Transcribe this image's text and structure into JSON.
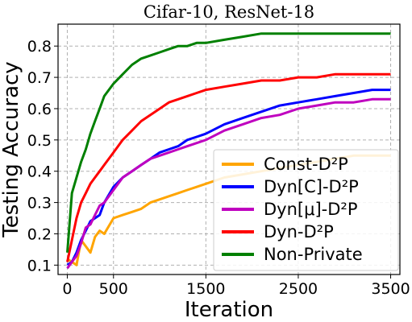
{
  "chart_data": {
    "type": "line",
    "title": "Cifar-10, ResNet-18",
    "xlabel": "Iteration",
    "ylabel": "Testing Accuracy",
    "xlim": [
      -100,
      3600
    ],
    "ylim": [
      0.07,
      0.87
    ],
    "xticks": [
      0,
      500,
      1500,
      2500,
      3500
    ],
    "yticks": [
      0.1,
      0.2,
      0.3,
      0.4,
      0.5,
      0.6,
      0.7,
      0.8
    ],
    "grid": true,
    "legend_position": "lower-right",
    "series": [
      {
        "name": "Const-D²P",
        "color": "#ffa500",
        "x": [
          0,
          50,
          100,
          150,
          200,
          250,
          300,
          350,
          400,
          500,
          600,
          700,
          800,
          900,
          1000,
          1100,
          1200,
          1300,
          1400,
          1500,
          1700,
          1900,
          2100,
          2300,
          2500,
          2700,
          2900,
          3100,
          3300,
          3500
        ],
        "y": [
          0.12,
          0.11,
          0.1,
          0.18,
          0.16,
          0.14,
          0.19,
          0.21,
          0.2,
          0.25,
          0.26,
          0.27,
          0.28,
          0.3,
          0.31,
          0.32,
          0.33,
          0.34,
          0.35,
          0.36,
          0.38,
          0.39,
          0.4,
          0.41,
          0.42,
          0.43,
          0.44,
          0.45,
          0.45,
          0.45
        ]
      },
      {
        "name": "Dyn[C]-D²P",
        "color": "#0000ff",
        "x": [
          0,
          50,
          100,
          150,
          200,
          250,
          300,
          350,
          400,
          500,
          600,
          700,
          800,
          900,
          1000,
          1100,
          1200,
          1300,
          1400,
          1500,
          1700,
          1900,
          2100,
          2300,
          2500,
          2700,
          2900,
          3100,
          3300,
          3500
        ],
        "y": [
          0.1,
          0.11,
          0.14,
          0.18,
          0.21,
          0.24,
          0.25,
          0.26,
          0.3,
          0.35,
          0.38,
          0.4,
          0.42,
          0.44,
          0.46,
          0.47,
          0.48,
          0.5,
          0.51,
          0.52,
          0.55,
          0.57,
          0.59,
          0.61,
          0.62,
          0.63,
          0.64,
          0.65,
          0.66,
          0.66
        ]
      },
      {
        "name": "Dyn[μ]-D²P",
        "color": "#bf00bf",
        "x": [
          0,
          50,
          100,
          150,
          200,
          250,
          300,
          350,
          400,
          500,
          600,
          700,
          800,
          900,
          1000,
          1100,
          1200,
          1300,
          1400,
          1500,
          1700,
          1900,
          2100,
          2300,
          2500,
          2700,
          2900,
          3100,
          3300,
          3500
        ],
        "y": [
          0.09,
          0.11,
          0.13,
          0.17,
          0.22,
          0.23,
          0.26,
          0.29,
          0.3,
          0.34,
          0.38,
          0.4,
          0.42,
          0.44,
          0.45,
          0.46,
          0.47,
          0.48,
          0.49,
          0.5,
          0.53,
          0.55,
          0.57,
          0.58,
          0.6,
          0.61,
          0.62,
          0.62,
          0.63,
          0.63
        ]
      },
      {
        "name": "Dyn-D²P",
        "color": "#ff0000",
        "x": [
          0,
          50,
          100,
          150,
          200,
          250,
          300,
          350,
          400,
          500,
          600,
          700,
          800,
          900,
          1000,
          1100,
          1200,
          1300,
          1400,
          1500,
          1700,
          1900,
          2100,
          2300,
          2500,
          2700,
          2900,
          3100,
          3300,
          3500
        ],
        "y": [
          0.11,
          0.18,
          0.25,
          0.3,
          0.33,
          0.36,
          0.38,
          0.4,
          0.42,
          0.46,
          0.5,
          0.53,
          0.56,
          0.58,
          0.6,
          0.62,
          0.63,
          0.64,
          0.65,
          0.66,
          0.67,
          0.68,
          0.69,
          0.69,
          0.7,
          0.7,
          0.71,
          0.71,
          0.71,
          0.71
        ]
      },
      {
        "name": "Non-Private",
        "color": "#008000",
        "x": [
          0,
          50,
          100,
          150,
          200,
          250,
          300,
          350,
          400,
          500,
          600,
          700,
          800,
          900,
          1000,
          1100,
          1200,
          1300,
          1400,
          1500,
          1700,
          1900,
          2100,
          2300,
          2500,
          2700,
          2900,
          3100,
          3300,
          3500
        ],
        "y": [
          0.14,
          0.33,
          0.38,
          0.43,
          0.47,
          0.52,
          0.56,
          0.6,
          0.64,
          0.68,
          0.71,
          0.74,
          0.76,
          0.77,
          0.78,
          0.79,
          0.8,
          0.8,
          0.81,
          0.81,
          0.82,
          0.83,
          0.84,
          0.84,
          0.84,
          0.84,
          0.84,
          0.84,
          0.84,
          0.84
        ]
      }
    ]
  }
}
